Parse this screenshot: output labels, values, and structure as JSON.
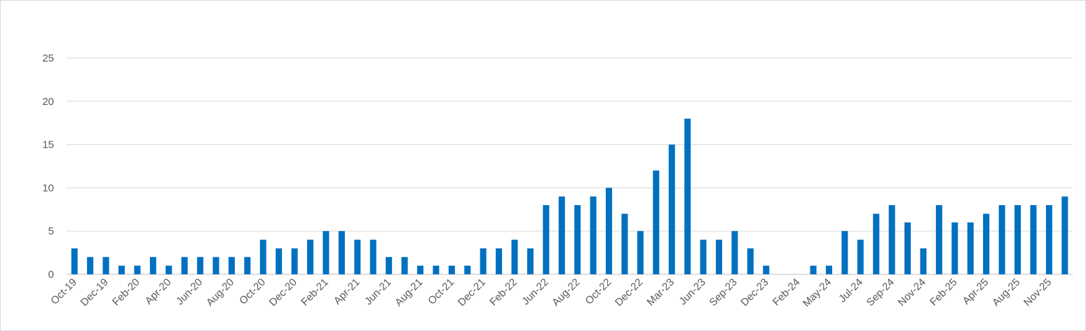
{
  "chart_data": {
    "type": "bar",
    "categories": [
      "Oct-19",
      null,
      "Dec-19",
      null,
      "Feb-20",
      null,
      "Apr-20",
      null,
      "Jun-20",
      null,
      "Aug-20",
      null,
      "Oct-20",
      null,
      "Dec-20",
      null,
      "Feb-21",
      null,
      "Apr-21",
      null,
      "Jun-21",
      null,
      "Aug-21",
      null,
      "Oct-21",
      null,
      "Dec-21",
      null,
      "Feb-22",
      null,
      "Jun-22",
      null,
      "Aug-22",
      null,
      "Oct-22",
      null,
      "Dec-22",
      null,
      "Mar-23",
      null,
      "Jun-23",
      null,
      "Sep-23",
      null,
      "Dec-23",
      null,
      "Feb-24",
      null,
      "May-24",
      null,
      "Jul-24",
      null,
      "Sep-24",
      null,
      "Nov-24",
      null,
      "Feb-25",
      null,
      "Apr-25",
      null,
      "Aug-25",
      null,
      "Nov-25",
      null
    ],
    "values": [
      3,
      2,
      2,
      1,
      1,
      2,
      1,
      2,
      2,
      2,
      2,
      2,
      4,
      3,
      3,
      4,
      5,
      5,
      4,
      4,
      2,
      2,
      1,
      1,
      1,
      1,
      3,
      3,
      4,
      3,
      8,
      9,
      8,
      9,
      10,
      7,
      5,
      12,
      15,
      18,
      4,
      4,
      5,
      3,
      1,
      0,
      0,
      1,
      1,
      5,
      4,
      7,
      8,
      6,
      3,
      8,
      6,
      6,
      7,
      8,
      8,
      8,
      8,
      9
    ],
    "color": "#0070c0",
    "ylim": [
      0,
      25
    ],
    "yticks": [
      0,
      5,
      10,
      15,
      20,
      25
    ],
    "grid": true
  }
}
